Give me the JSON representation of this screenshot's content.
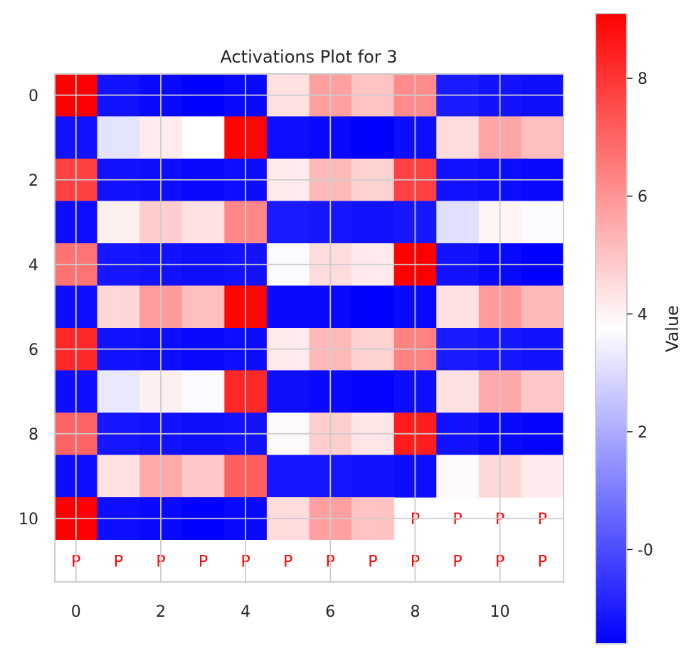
{
  "chart_data": {
    "type": "heatmap",
    "title": "Activations Plot for 3",
    "colorbar_label": "Value",
    "colormap": "bwr",
    "vmin": -1.6,
    "vmax": 9.1,
    "x_ticks": [
      "0",
      "2",
      "4",
      "6",
      "8",
      "10"
    ],
    "y_ticks": [
      "0",
      "2",
      "4",
      "6",
      "8",
      "10"
    ],
    "colorbar_ticks": [
      "-0",
      "2",
      "4",
      "6",
      "8"
    ],
    "pad_marker": "P",
    "grid": true,
    "pad_cells": [
      [
        10,
        8
      ],
      [
        10,
        9
      ],
      [
        10,
        10
      ],
      [
        10,
        11
      ],
      [
        11,
        0
      ],
      [
        11,
        1
      ],
      [
        11,
        2
      ],
      [
        11,
        3
      ],
      [
        11,
        4
      ],
      [
        11,
        5
      ],
      [
        11,
        6
      ],
      [
        11,
        7
      ],
      [
        11,
        8
      ],
      [
        11,
        9
      ],
      [
        11,
        10
      ],
      [
        11,
        11
      ]
    ],
    "values": [
      [
        9.1,
        -1.2,
        -1.4,
        -1.6,
        -1.4,
        4.6,
        5.9,
        5.2,
        6.3,
        -1.0,
        -1.2,
        -1.3
      ],
      [
        -1.2,
        3.4,
        4.4,
        4.0,
        9.0,
        -1.3,
        -1.4,
        -1.6,
        -1.3,
        4.7,
        5.8,
        5.3
      ],
      [
        7.8,
        -1.2,
        -1.3,
        -1.4,
        -1.3,
        4.4,
        5.4,
        4.9,
        7.8,
        -1.2,
        -1.3,
        -1.4
      ],
      [
        -1.3,
        4.3,
        5.0,
        4.6,
        6.4,
        -1.0,
        -1.1,
        -1.2,
        -1.1,
        3.3,
        4.2,
        3.9
      ],
      [
        6.8,
        -1.1,
        -1.2,
        -1.3,
        -1.2,
        3.9,
        4.7,
        4.4,
        9.1,
        -1.2,
        -1.4,
        -1.6
      ],
      [
        -1.3,
        4.8,
        6.0,
        5.3,
        9.0,
        -1.4,
        -1.4,
        -1.6,
        -1.4,
        4.6,
        6.0,
        5.4
      ],
      [
        8.3,
        -1.2,
        -1.3,
        -1.4,
        -1.3,
        4.4,
        5.4,
        4.9,
        6.5,
        -1.0,
        -1.1,
        -1.2
      ],
      [
        -1.3,
        3.5,
        4.3,
        3.9,
        8.3,
        -1.3,
        -1.4,
        -1.5,
        -1.3,
        4.6,
        5.7,
        5.1
      ],
      [
        7.1,
        -1.1,
        -1.2,
        -1.3,
        -1.2,
        4.1,
        5.0,
        4.5,
        8.5,
        -1.2,
        -1.4,
        -1.5
      ],
      [
        -1.3,
        4.6,
        5.7,
        5.1,
        7.2,
        -1.1,
        -1.1,
        -1.2,
        -1.3,
        4.1,
        4.8,
        4.4
      ],
      [
        9.1,
        -1.3,
        -1.4,
        -1.6,
        -1.4,
        4.7,
        5.9,
        5.2,
        null,
        null,
        null,
        null
      ],
      [
        null,
        null,
        null,
        null,
        null,
        null,
        null,
        null,
        null,
        null,
        null,
        null
      ]
    ]
  }
}
